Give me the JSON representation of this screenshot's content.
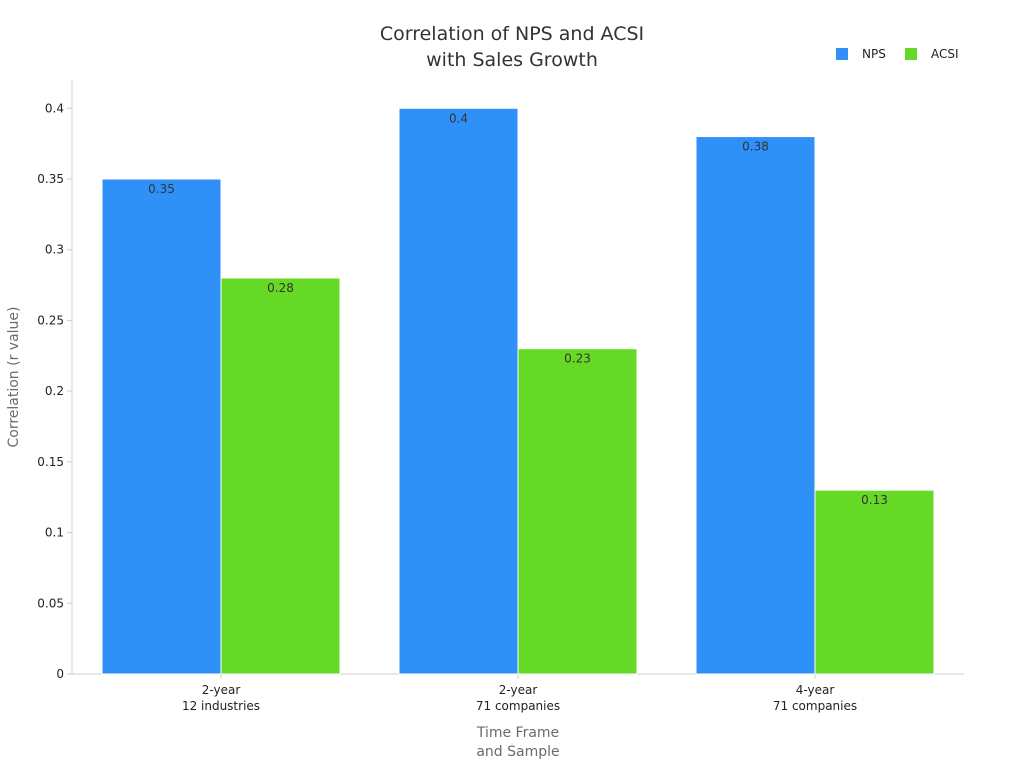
{
  "chart_data": {
    "type": "bar",
    "title_lines": [
      "Correlation of NPS and ACSI",
      "with Sales Growth"
    ],
    "xlabel_lines": [
      "Time Frame",
      "and Sample"
    ],
    "ylabel": "Correlation (r value)",
    "categories": [
      [
        "2-year",
        "12 industries"
      ],
      [
        "2-year",
        "71 companies"
      ],
      [
        "4-year",
        "71 companies"
      ]
    ],
    "series": [
      {
        "name": "NPS",
        "color": "#2f91f7",
        "values": [
          0.35,
          0.4,
          0.38
        ],
        "labels": [
          "0.35",
          "0.4",
          "0.38"
        ]
      },
      {
        "name": "ACSI",
        "color": "#66d926",
        "values": [
          0.28,
          0.23,
          0.13
        ],
        "labels": [
          "0.28",
          "0.23",
          "0.13"
        ]
      }
    ],
    "ylim": [
      0,
      0.42
    ],
    "yticks": [
      0,
      0.05,
      0.1,
      0.15,
      0.2,
      0.25,
      0.3,
      0.35,
      0.4
    ],
    "ytick_labels": [
      "0",
      "0.05",
      "0.1",
      "0.15",
      "0.2",
      "0.25",
      "0.3",
      "0.35",
      "0.4"
    ],
    "grid": false,
    "legend_position": "top-right"
  }
}
